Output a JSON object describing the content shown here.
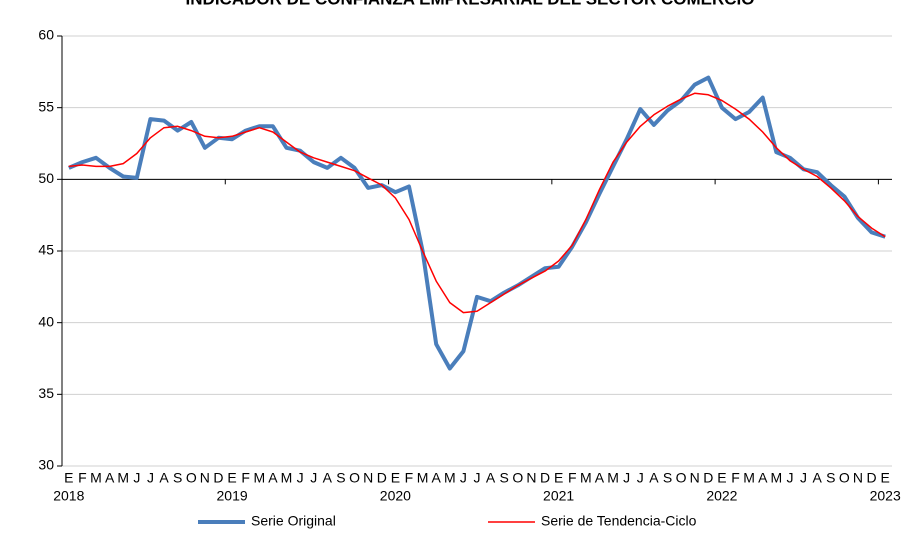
{
  "chart_data": {
    "type": "line",
    "title": "INDICADOR DE CONFIANZA EMPRESARIAL DEL SECTOR COMERCIO",
    "categories": [
      "E",
      "F",
      "M",
      "A",
      "M",
      "J",
      "J",
      "A",
      "S",
      "O",
      "N",
      "D",
      "E",
      "F",
      "M",
      "A",
      "M",
      "J",
      "J",
      "A",
      "S",
      "O",
      "N",
      "D",
      "E",
      "F",
      "M",
      "A",
      "M",
      "J",
      "J",
      "A",
      "S",
      "O",
      "N",
      "D",
      "E",
      "F",
      "M",
      "A",
      "M",
      "J",
      "J",
      "A",
      "S",
      "O",
      "N",
      "D",
      "E",
      "F",
      "M",
      "A",
      "M",
      "J",
      "J",
      "A",
      "S",
      "O",
      "N",
      "D",
      "E"
    ],
    "years": [
      "2018",
      null,
      null,
      null,
      null,
      null,
      null,
      null,
      null,
      null,
      null,
      null,
      "2019",
      null,
      null,
      null,
      null,
      null,
      null,
      null,
      null,
      null,
      null,
      null,
      "2020",
      null,
      null,
      null,
      null,
      null,
      null,
      null,
      null,
      null,
      null,
      null,
      "2021",
      null,
      null,
      null,
      null,
      null,
      null,
      null,
      null,
      null,
      null,
      null,
      "2022",
      null,
      null,
      null,
      null,
      null,
      null,
      null,
      null,
      null,
      null,
      null,
      "2023"
    ],
    "series": [
      {
        "name": "Serie Original",
        "color": "#4a7ebb",
        "values": [
          50.8,
          51.2,
          51.5,
          50.8,
          50.2,
          50.1,
          54.2,
          54.1,
          53.4,
          54.0,
          52.2,
          52.9,
          52.8,
          53.4,
          53.7,
          53.7,
          52.2,
          52.0,
          51.2,
          50.8,
          51.5,
          50.8,
          49.4,
          49.6,
          49.1,
          49.5,
          45.0,
          38.5,
          36.8,
          38.0,
          41.8,
          41.5,
          42.1,
          42.6,
          43.2,
          43.8,
          43.9,
          45.3,
          47.0,
          49.0,
          50.9,
          52.8,
          54.9,
          53.8,
          54.8,
          55.5,
          56.6,
          57.1,
          55.0,
          54.2,
          54.7,
          55.7,
          51.9,
          51.5,
          50.7,
          50.5,
          49.6,
          48.8,
          47.3,
          46.3,
          46.0
        ]
      },
      {
        "name": "Serie de Tendencia-Ciclo",
        "color": "#ff0000",
        "values": [
          50.9,
          51.0,
          50.9,
          50.9,
          51.1,
          51.8,
          52.9,
          53.6,
          53.7,
          53.4,
          53.0,
          52.9,
          53.0,
          53.3,
          53.6,
          53.3,
          52.6,
          51.9,
          51.5,
          51.2,
          50.9,
          50.6,
          50.1,
          49.6,
          48.7,
          47.2,
          45.0,
          42.9,
          41.4,
          40.7,
          40.8,
          41.4,
          42.0,
          42.6,
          43.1,
          43.6,
          44.3,
          45.4,
          47.2,
          49.3,
          51.2,
          52.6,
          53.7,
          54.5,
          55.1,
          55.6,
          56.0,
          55.9,
          55.5,
          54.9,
          54.2,
          53.3,
          52.2,
          51.3,
          50.7,
          50.2,
          49.4,
          48.5,
          47.4,
          46.6,
          46.0
        ]
      }
    ],
    "ylim": [
      30,
      60
    ],
    "yticks": [
      30,
      35,
      40,
      45,
      50,
      55,
      60
    ],
    "grid": true,
    "xaxis_at": 50,
    "legend": "bottom"
  }
}
